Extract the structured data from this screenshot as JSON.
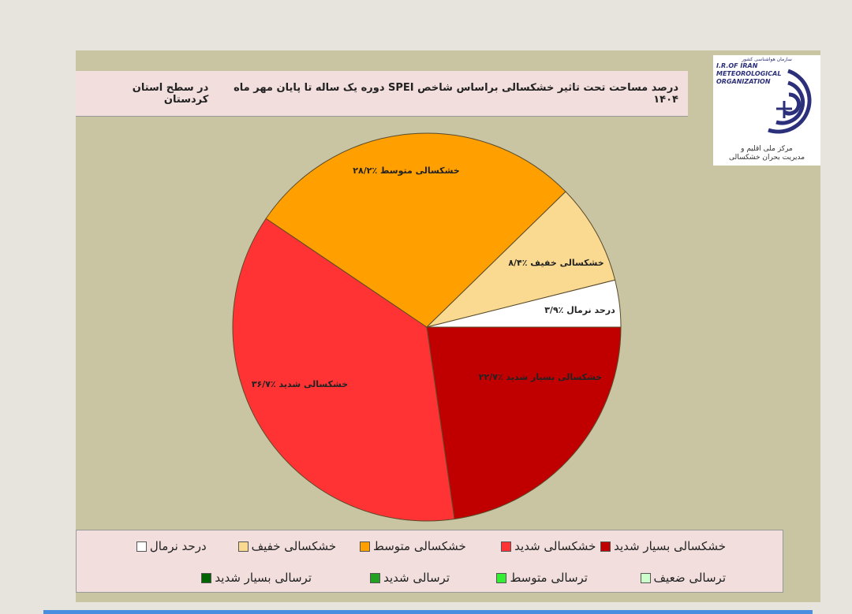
{
  "header": {
    "title": "درصد مساحت تحت تاثیر خشکسالی براساس شاخص SPEI دوره یک ساله تا پایان مهر ماه ۱۴۰۴",
    "region": "در سطح استان کردستان"
  },
  "logo": {
    "top_fa": "سازمان هواشناسی کشور",
    "en1": "I.R.OF IRAN",
    "en2": "METEOROLOGICAL",
    "en3": "ORGANIZATION",
    "fa1": "مرکز ملی اقلیم و",
    "fa2": "مدیریت بحران خشکسالی"
  },
  "chart_data": {
    "type": "pie",
    "title": "درصد مساحت تحت تاثیر خشکسالی براساس شاخص SPEI دوره یک ساله تا پایان مهر ماه ۱۴۰۴",
    "slices": [
      {
        "name": "خشکسالی بسیار شدید",
        "value": 22.7,
        "label": "خشکسالی بسیار شدید ٪۲۲/۷",
        "color": "#c00000"
      },
      {
        "name": "خشکسالی شدید",
        "value": 36.7,
        "label": "خشکسالی شدید ٪۳۶/۷",
        "color": "#ff3333"
      },
      {
        "name": "خشکسالی متوسط",
        "value": 28.2,
        "label": "خشکسالی متوسط ٪۲۸/۲",
        "color": "#ff9f00"
      },
      {
        "name": "خشکسالی خفیف",
        "value": 8.4,
        "label": "خشکسالی خفیف ٪۸/۴",
        "color": "#fad990"
      },
      {
        "name": "درحد نرمال",
        "value": 3.9,
        "label": "درحد نرمال ٪۳/۹",
        "color": "#ffffff"
      }
    ],
    "legend_position": "bottom",
    "legend": [
      [
        {
          "label": "خشکسالی بسیار شدید",
          "color": "#c00000"
        },
        {
          "label": "خشکسالی شدید",
          "color": "#ff3333"
        },
        {
          "label": "خشکسالی متوسط",
          "color": "#ff9f00"
        },
        {
          "label": "خشکسالی خفیف",
          "color": "#fad990"
        },
        {
          "label": "درحد نرمال",
          "color": "#ffffff"
        }
      ],
      [
        {
          "label": "ترسالی ضعیف",
          "color": "#ccffcc"
        },
        {
          "label": "ترسالی متوسط",
          "color": "#33ee33"
        },
        {
          "label": "ترسالی شدید",
          "color": "#22a022"
        },
        {
          "label": "ترسالی بسیار شدید",
          "color": "#006400"
        }
      ]
    ]
  }
}
